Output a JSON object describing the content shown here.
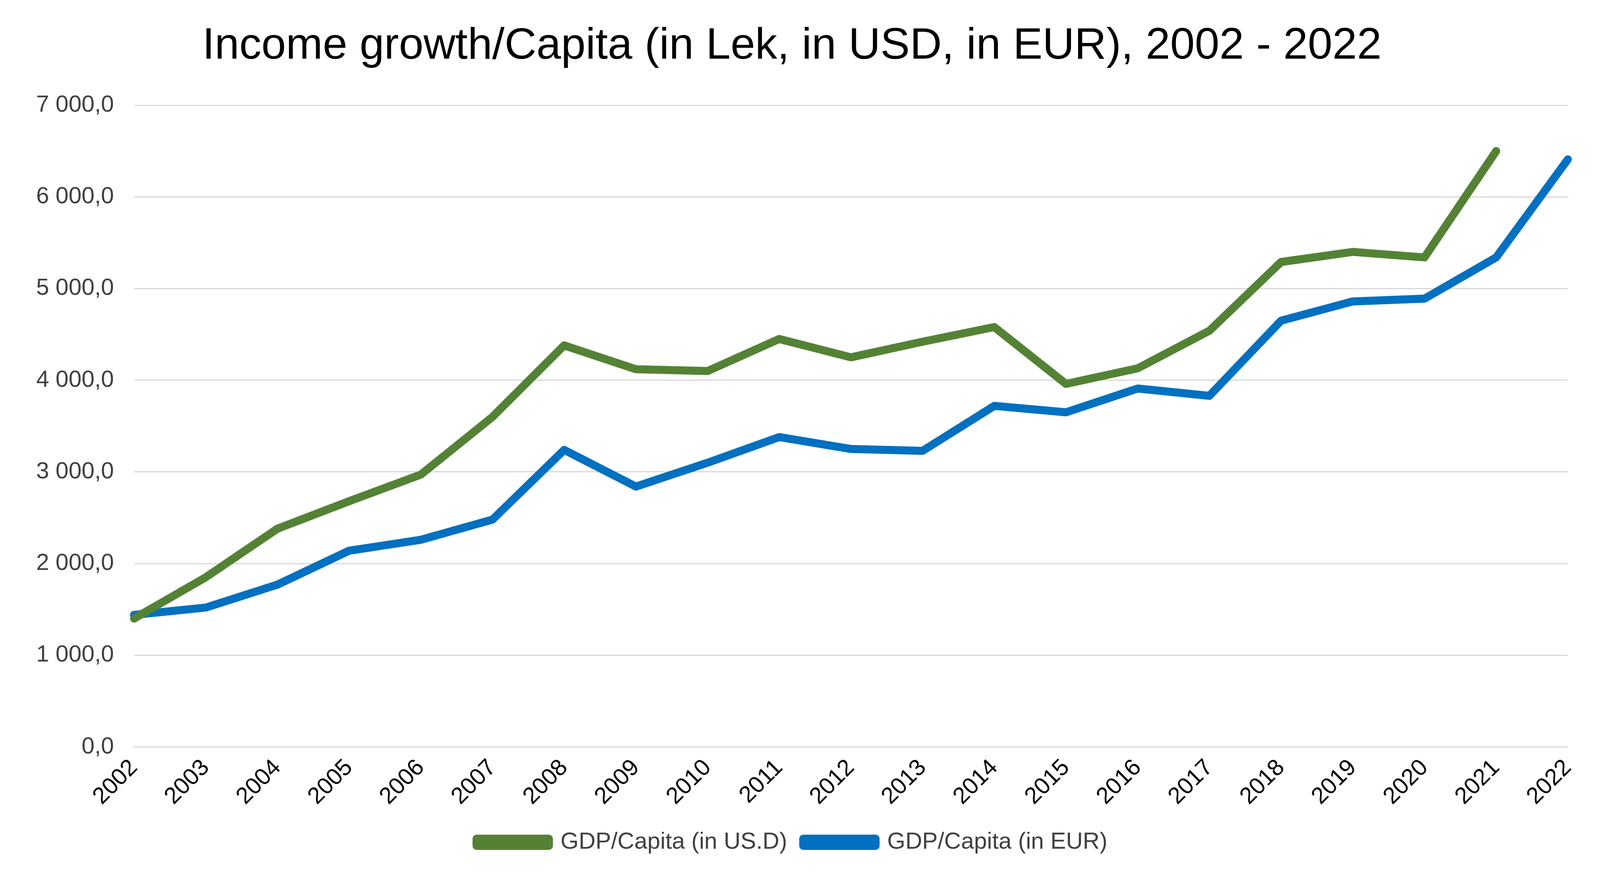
{
  "chart_data": {
    "type": "line",
    "title": "Income growth/Capita (in Lek, in USD, in EUR), 2002 - 2022",
    "categories": [
      "2002",
      "2003",
      "2004",
      "2005",
      "2006",
      "2007",
      "2008",
      "2009",
      "2010",
      "2011",
      "2012",
      "2013",
      "2014",
      "2015",
      "2016",
      "2017",
      "2018",
      "2019",
      "2020",
      "2021",
      "2022"
    ],
    "series": [
      {
        "name": "GDP/Capita (in US.D)",
        "color": "#548235",
        "values": [
          1400,
          1850,
          2380,
          2680,
          2970,
          3600,
          4380,
          4120,
          4100,
          4450,
          4250,
          4420,
          4580,
          3960,
          4130,
          4540,
          5290,
          5400,
          5340,
          6500,
          null
        ]
      },
      {
        "name": "GDP/Capita (in EUR)",
        "color": "#0070c0",
        "values": [
          1440,
          1520,
          1770,
          2140,
          2260,
          2480,
          3240,
          2840,
          3100,
          3380,
          3250,
          3230,
          3720,
          3650,
          3910,
          3830,
          4650,
          4860,
          4890,
          5340,
          6410
        ]
      }
    ],
    "ylim": [
      0,
      7000
    ],
    "yticks": [
      {
        "value": 0,
        "label": "0,0"
      },
      {
        "value": 1000,
        "label": "1 000,0"
      },
      {
        "value": 2000,
        "label": "2 000,0"
      },
      {
        "value": 3000,
        "label": "3 000,0"
      },
      {
        "value": 4000,
        "label": "4 000,0"
      },
      {
        "value": 5000,
        "label": "5 000,0"
      },
      {
        "value": 6000,
        "label": "6 000,0"
      },
      {
        "value": 7000,
        "label": "7 000,0"
      }
    ],
    "grid": true,
    "legend": "bottom"
  }
}
